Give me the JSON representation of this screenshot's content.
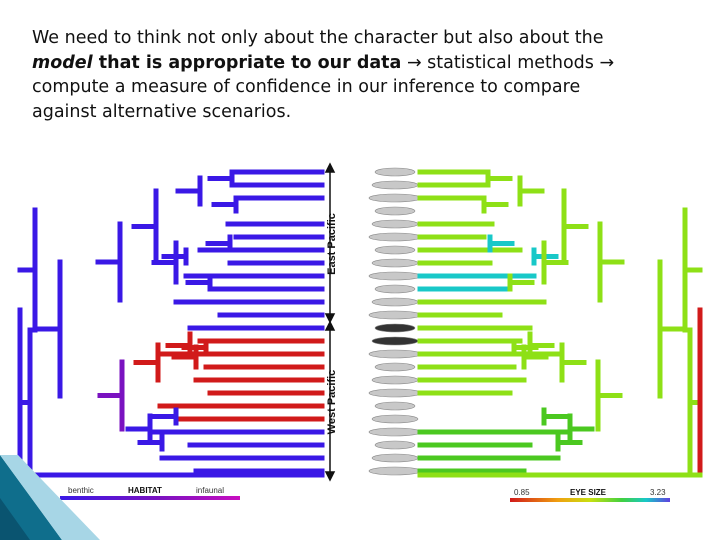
{
  "text": {
    "line1": "We need to think not only about the character but also about the",
    "model_word": "model",
    "bold_part": " that is appropriate to our data",
    "arrow_glyph": "→",
    "after_arrow1": " statistical methods ",
    "line3": "compute a measure of confidence in our inference to compare",
    "line4": "against alternative scenarios."
  },
  "figure": {
    "region_top": "East Pacific",
    "region_bottom": "West Pacific",
    "habitat_legend": {
      "left": "benthic",
      "title": "HABITAT",
      "right": "infaunal"
    },
    "eye_legend": {
      "min": "0.85",
      "title": "EYE SIZE",
      "max": "3.23"
    }
  },
  "colors": {
    "blue": "#3a18e6",
    "purple": "#7a12c0",
    "red": "#d11a1a",
    "lime": "#8ee016",
    "green": "#4bc820",
    "cyan": "#18c8c8",
    "accent_teal": "#0f6e8c"
  }
}
